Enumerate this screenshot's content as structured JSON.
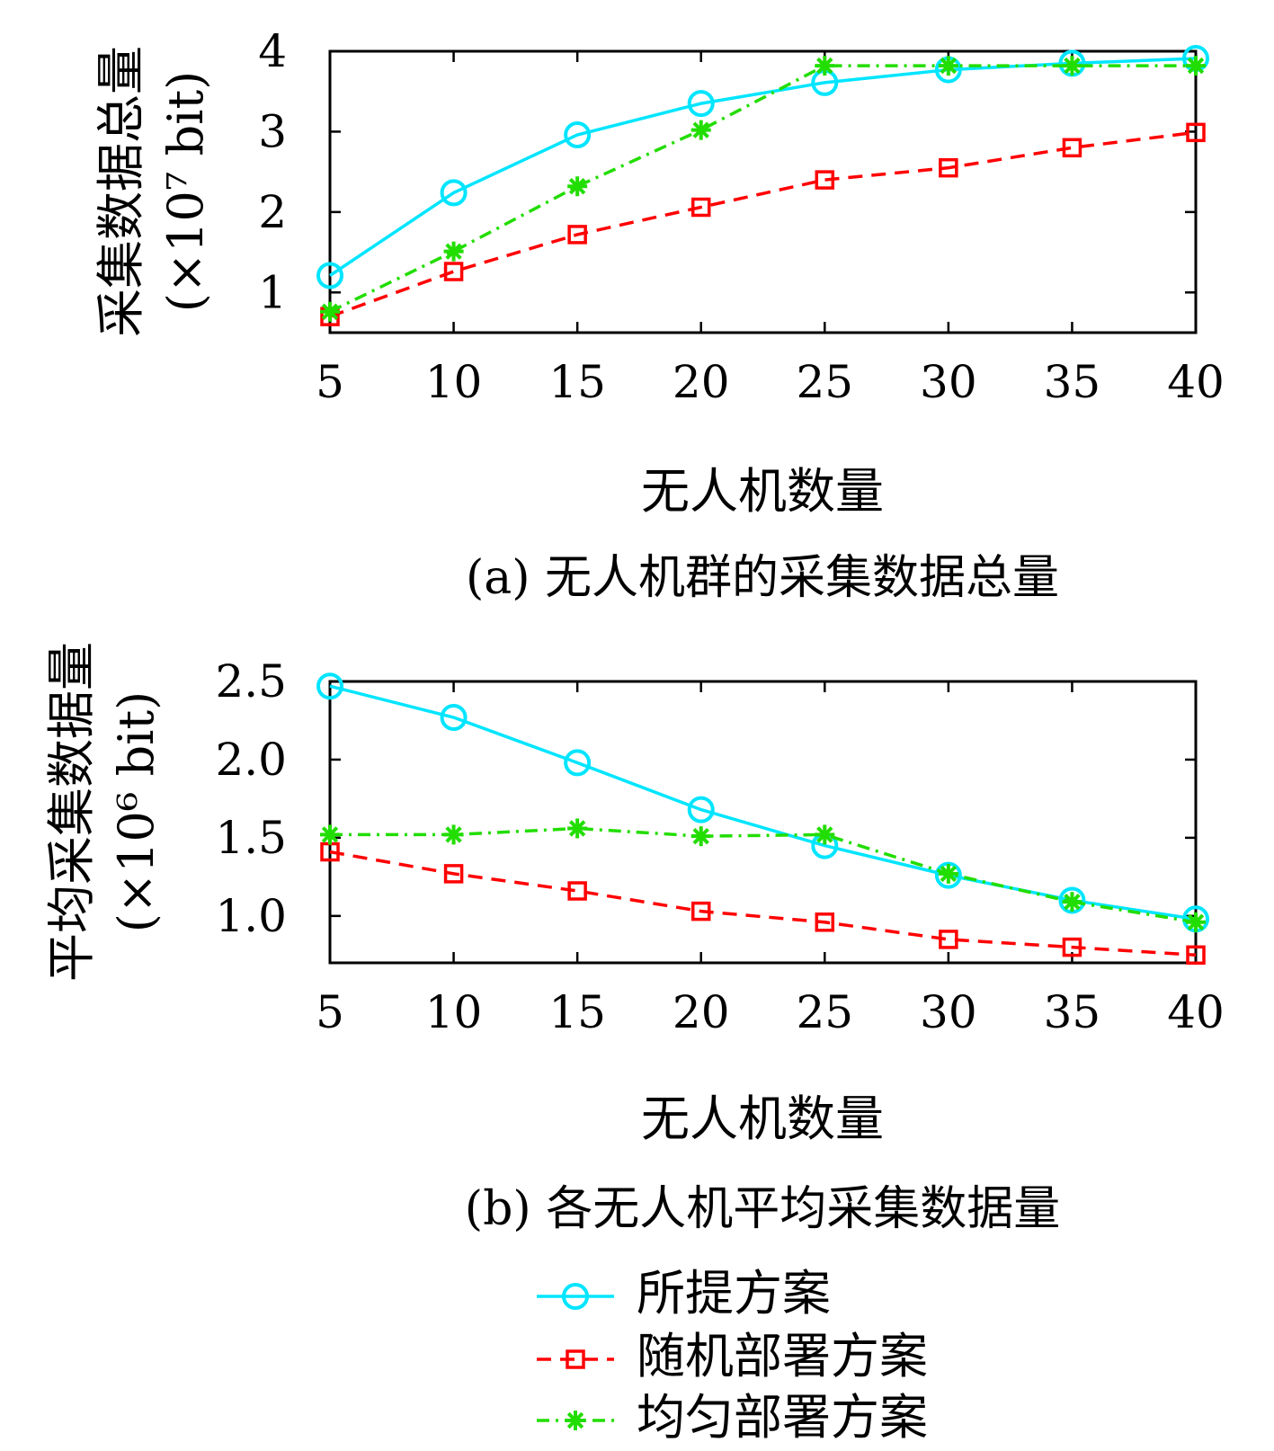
{
  "chart_data": [
    {
      "type": "line",
      "caption": "(a) 无人机群的采集数据总量",
      "xlabel": "无人机数量",
      "ylabel": "采集数据总量",
      "ylabel_unit": "(×10⁷ bit)",
      "x": [
        5,
        10,
        15,
        20,
        25,
        30,
        35,
        40
      ],
      "xticks": [
        "5",
        "10",
        "15",
        "20",
        "25",
        "30",
        "35",
        "40"
      ],
      "yticks": [
        "1",
        "2",
        "3",
        "4"
      ],
      "xlim": [
        5,
        40
      ],
      "ylim": [
        0.5,
        4.0
      ],
      "grid": false,
      "series": [
        {
          "name": "所提方案",
          "color": "#00e5ff",
          "marker": "circle",
          "dash": "solid",
          "values": [
            1.21,
            2.24,
            2.96,
            3.35,
            3.61,
            3.77,
            3.85,
            3.91
          ]
        },
        {
          "name": "随机部署方案",
          "color": "#ff0000",
          "marker": "square",
          "dash": "dashed",
          "values": [
            0.7,
            1.26,
            1.72,
            2.06,
            2.4,
            2.55,
            2.8,
            2.99
          ]
        },
        {
          "name": "均匀部署方案",
          "color": "#22dd00",
          "marker": "star",
          "dash": "dashdot",
          "values": [
            0.76,
            1.51,
            2.32,
            3.02,
            3.82,
            3.82,
            3.82,
            3.82
          ]
        }
      ]
    },
    {
      "type": "line",
      "caption": "(b) 各无人机平均采集数据量",
      "xlabel": "无人机数量",
      "ylabel": "平均采集数据量",
      "ylabel_unit": "(×10⁶ bit)",
      "x": [
        5,
        10,
        15,
        20,
        25,
        30,
        35,
        40
      ],
      "xticks": [
        "5",
        "10",
        "15",
        "20",
        "25",
        "30",
        "35",
        "40"
      ],
      "yticks": [
        "1.0",
        "1.5",
        "2.0",
        "2.5"
      ],
      "xlim": [
        5,
        40
      ],
      "ylim": [
        0.7,
        2.5
      ],
      "grid": false,
      "series": [
        {
          "name": "所提方案",
          "color": "#00e5ff",
          "marker": "circle",
          "dash": "solid",
          "values": [
            2.47,
            2.27,
            1.98,
            1.68,
            1.45,
            1.26,
            1.1,
            0.98
          ]
        },
        {
          "name": "随机部署方案",
          "color": "#ff0000",
          "marker": "square",
          "dash": "dashed",
          "values": [
            1.41,
            1.27,
            1.16,
            1.03,
            0.96,
            0.85,
            0.8,
            0.75
          ]
        },
        {
          "name": "均匀部署方案",
          "color": "#22dd00",
          "marker": "star",
          "dash": "dashdot",
          "values": [
            1.52,
            1.52,
            1.56,
            1.51,
            1.52,
            1.27,
            1.09,
            0.96
          ]
        }
      ]
    }
  ],
  "legend": {
    "placement": "bottom-center",
    "items": [
      "所提方案",
      "随机部署方案",
      "均匀部署方案"
    ]
  }
}
